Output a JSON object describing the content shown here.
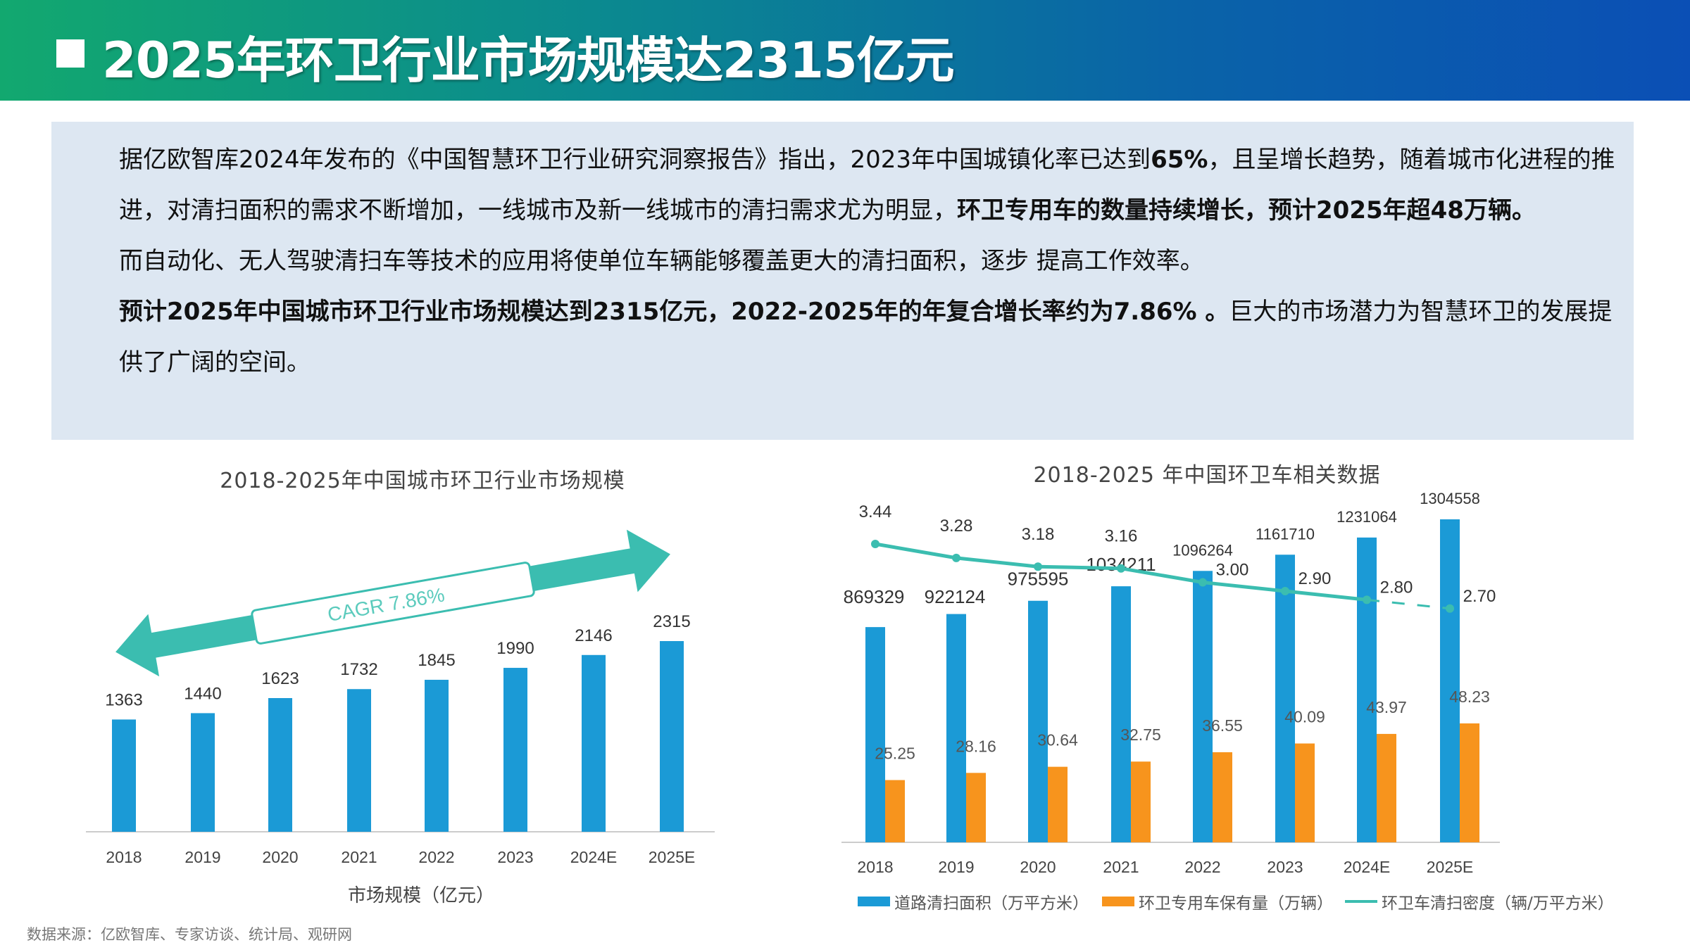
{
  "header": {
    "title": "2025年环卫行业市场规模达2315亿元"
  },
  "panel": {
    "p1_a": "据亿欧智库2024年发布的《中国智慧环卫行业研究洞察报告》指出，2023年中国城镇化率已达到",
    "p1_b": "65%",
    "p1_c": "，且呈增长趋势，随着城市化进程的推进，对清扫面积的需求不断增加，一线城市及新一线城市的清扫需求尤为明显，",
    "p1_d": "环卫专用车的数量持续增长，预计2025年超48万辆。",
    "p2": "而自动化、无人驾驶清扫车等技术的应用将使单位车辆能够覆盖更大的清扫面积，逐步 提高工作效率。",
    "p3_a": "预计2025年中国城市环卫行业市场规模达到2315亿元，2022-2025年的年复合增长率约为7.86% 。",
    "p3_b": "巨大的市场潜力为智慧环卫的发展提供了广阔的空间。"
  },
  "source": "数据来源：亿欧智库、专家访谈、统计局、观研网",
  "chart_data": [
    {
      "type": "bar",
      "title": "2018-2025年中国城市环卫行业市场规模",
      "categories": [
        "2018",
        "2019",
        "2020",
        "2021",
        "2022",
        "2023",
        "2024E",
        "2025E"
      ],
      "values": [
        1363,
        1440,
        1623,
        1732,
        1845,
        1990,
        2146,
        2315
      ],
      "xlabel": "市场规模（亿元）",
      "annotation": "CAGR 7.86%",
      "color": "#1b9ad6",
      "arrow_color": "#3bbdb0"
    },
    {
      "type": "bar",
      "title": "2018-2025 年中国环卫车相关数据",
      "categories": [
        "2018",
        "2019",
        "2020",
        "2021",
        "2022",
        "2023",
        "2024E",
        "2025E"
      ],
      "series": [
        {
          "name": "道路清扫面积（万平方米）",
          "kind": "bar",
          "color": "#1b9ad6",
          "values": [
            869329,
            922124,
            975595,
            1034211,
            1096264,
            1161710,
            1231064,
            1304558
          ]
        },
        {
          "name": "环卫专用车保有量（万辆）",
          "kind": "bar",
          "color": "#f7941d",
          "values": [
            25.25,
            28.16,
            30.64,
            32.75,
            36.55,
            40.09,
            43.97,
            48.23
          ]
        },
        {
          "name": "环卫车清扫密度（辆/万平方米）",
          "kind": "line",
          "color": "#3bbdb0",
          "values": [
            3.44,
            3.28,
            3.18,
            3.16,
            3.0,
            2.9,
            2.8,
            2.7
          ],
          "labels": [
            "3.44",
            "3.28",
            "3.18",
            "3.16",
            "3.00",
            "2.90",
            "2.80",
            "2.70"
          ]
        }
      ]
    }
  ]
}
